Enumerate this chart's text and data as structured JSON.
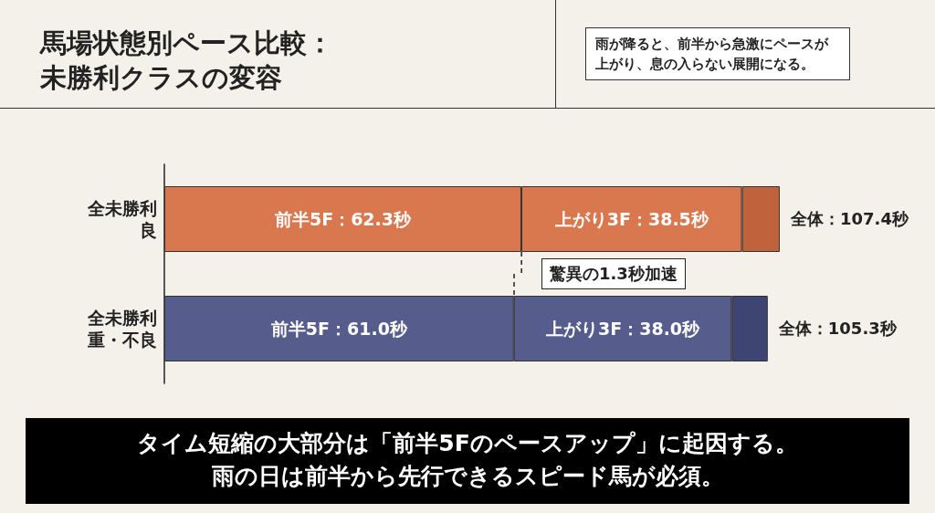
{
  "chart_data": {
    "type": "bar",
    "orientation": "horizontal",
    "stacked": true,
    "title": "馬場状態別ペース比較：未勝利クラスの変容",
    "subtitle": "雨が降ると、前半から急激にペースが上がり、息の入らない展開になる。",
    "categories": [
      "全未勝利良",
      "全未勝利重・不良"
    ],
    "series": [
      {
        "colors": [
          "#d9774f",
          "#565d8c"
        ],
        "values": [
          62.3,
          61.0
        ],
        "value_labels": [
          "前半5F：62.3秒",
          "前半5F：61.0秒"
        ]
      },
      {
        "colors": [
          "#d9774f",
          "#565d8c"
        ],
        "values": [
          38.5,
          38.0
        ],
        "value_labels": [
          "上がり3F：38.5秒",
          "上がり3F：38.0秒"
        ]
      },
      {
        "colors": [
          "#c0623c",
          "#3f4573"
        ],
        "values": [
          6.6,
          6.3
        ],
        "value_labels": [
          null,
          null
        ]
      }
    ],
    "totals": [
      "全体：107.4秒",
      "全体：105.3秒"
    ],
    "annotations": [
      "驚異の1.3秒加速",
      "タイム短縮の大部分は「前半5Fのペースアップ」に起因する。",
      "雨の日は前半から先行できるスピード馬が必須。"
    ]
  }
}
